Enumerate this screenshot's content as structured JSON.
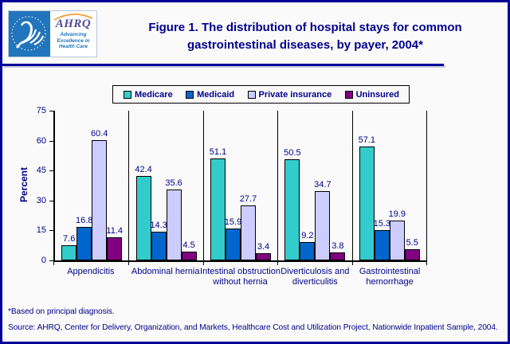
{
  "header": {
    "title_lines": [
      "Figure 1. The distribution of hospital stays for common",
      "gastrointestinal diseases, by payer, 2004*"
    ],
    "logo": {
      "ahrq_text": "AHRQ",
      "tagline": [
        "Advancing",
        "Excellence in",
        "Health Care"
      ]
    }
  },
  "chart_data": {
    "type": "bar",
    "title": "Figure 1. The distribution of hospital stays for common gastrointestinal diseases, by payer, 2004*",
    "xlabel": "",
    "ylabel": "Percent",
    "ylim": [
      0,
      75
    ],
    "yticks": [
      0,
      15,
      30,
      45,
      60,
      75
    ],
    "grid": false,
    "legend_position": "top",
    "data_labels": true,
    "categories": [
      "Appendicitis",
      "Abdominal hernia",
      "Intestinal obstruction without hernia",
      "Diverticulosis and diverticulitis",
      "Gastrointestinal hemorrhage"
    ],
    "series": [
      {
        "name": "Medicare",
        "color": "#33CCCC",
        "values": [
          7.6,
          42.4,
          51.1,
          50.5,
          57.1
        ]
      },
      {
        "name": "Medicaid",
        "color": "#0066CC",
        "values": [
          16.8,
          14.3,
          15.9,
          9.2,
          15.3
        ]
      },
      {
        "name": "Private insurance",
        "color": "#CCCCFF",
        "values": [
          60.4,
          35.6,
          27.7,
          34.7,
          19.9
        ]
      },
      {
        "name": "Uninsured",
        "color": "#800080",
        "values": [
          11.4,
          4.5,
          3.4,
          3.8,
          5.5
        ]
      }
    ]
  },
  "footnotes": {
    "note": "*Based on principal diagnosis.",
    "source": "Source: AHRQ, Center for Delivery, Organization, and Markets, Healthcare Cost and Utilization Project, Nationwide Inpatient Sample, 2004."
  },
  "colors": {
    "navy_text": "#00008B",
    "rule_navy": "#000099",
    "hhs_blue": "#2175BC",
    "ahrq_purple": "#4F4D9B",
    "swoosh_orange": "#F2A13C",
    "axis_black": "#000000",
    "background": "#FAFAFA"
  }
}
